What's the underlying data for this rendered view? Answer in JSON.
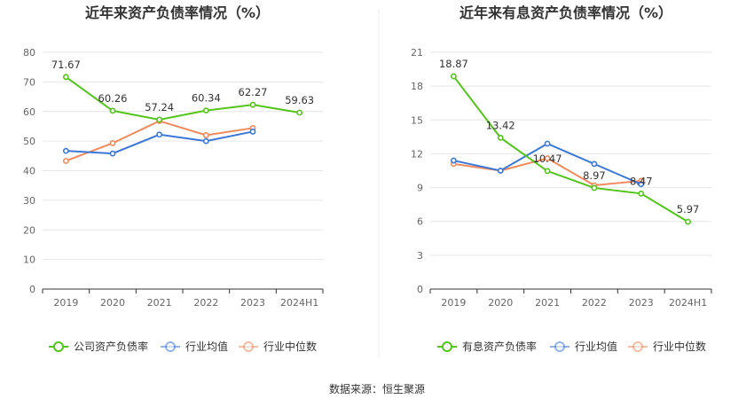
{
  "source": "数据来源：恒生聚源",
  "legend_icon": "circle-line-marker-icon",
  "chart_data": [
    {
      "type": "line",
      "title": "近年来资产负债率情况（%）",
      "categories": [
        "2019",
        "2020",
        "2021",
        "2022",
        "2023",
        "2024H1"
      ],
      "ylim": [
        0,
        80
      ],
      "yticks": [
        0,
        10,
        20,
        30,
        40,
        50,
        60,
        70,
        80
      ],
      "grid": true,
      "legend_position": "bottom",
      "series": [
        {
          "name": "公司资产负债率",
          "color": "#52c41a",
          "values": [
            71.67,
            60.26,
            57.24,
            60.34,
            62.27,
            59.63
          ],
          "labels": [
            "71.67",
            "60.26",
            "57.24",
            "60.34",
            "62.27",
            "59.63"
          ]
        },
        {
          "name": "行业均值",
          "color": "#3a77d8",
          "values": [
            46.7,
            45.8,
            52.2,
            50.0,
            53.2,
            null
          ],
          "labels": []
        },
        {
          "name": "行业中位数",
          "color": "#f08a5d",
          "values": [
            43.3,
            49.3,
            56.8,
            52.0,
            54.4,
            null
          ],
          "labels": []
        }
      ]
    },
    {
      "type": "line",
      "title": "近年来有息资产负债率情况（%）",
      "categories": [
        "2019",
        "2020",
        "2021",
        "2022",
        "2023",
        "2024H1"
      ],
      "ylim": [
        0,
        21
      ],
      "yticks": [
        0,
        3,
        6,
        9,
        12,
        15,
        18,
        21
      ],
      "grid": true,
      "legend_position": "bottom",
      "series": [
        {
          "name": "有息资产负债率",
          "color": "#52c41a",
          "values": [
            18.87,
            13.42,
            10.47,
            8.97,
            8.47,
            5.97
          ],
          "labels": [
            "18.87",
            "13.42",
            "10.47",
            "8.97",
            "8.47",
            "5.97"
          ]
        },
        {
          "name": "行业均值",
          "color": "#3a77d8",
          "values": [
            11.4,
            10.5,
            12.9,
            11.1,
            9.3,
            null
          ],
          "labels": []
        },
        {
          "name": "行业中位数",
          "color": "#f08a5d",
          "values": [
            11.1,
            10.5,
            11.6,
            9.2,
            9.6,
            null
          ],
          "labels": []
        }
      ]
    }
  ]
}
